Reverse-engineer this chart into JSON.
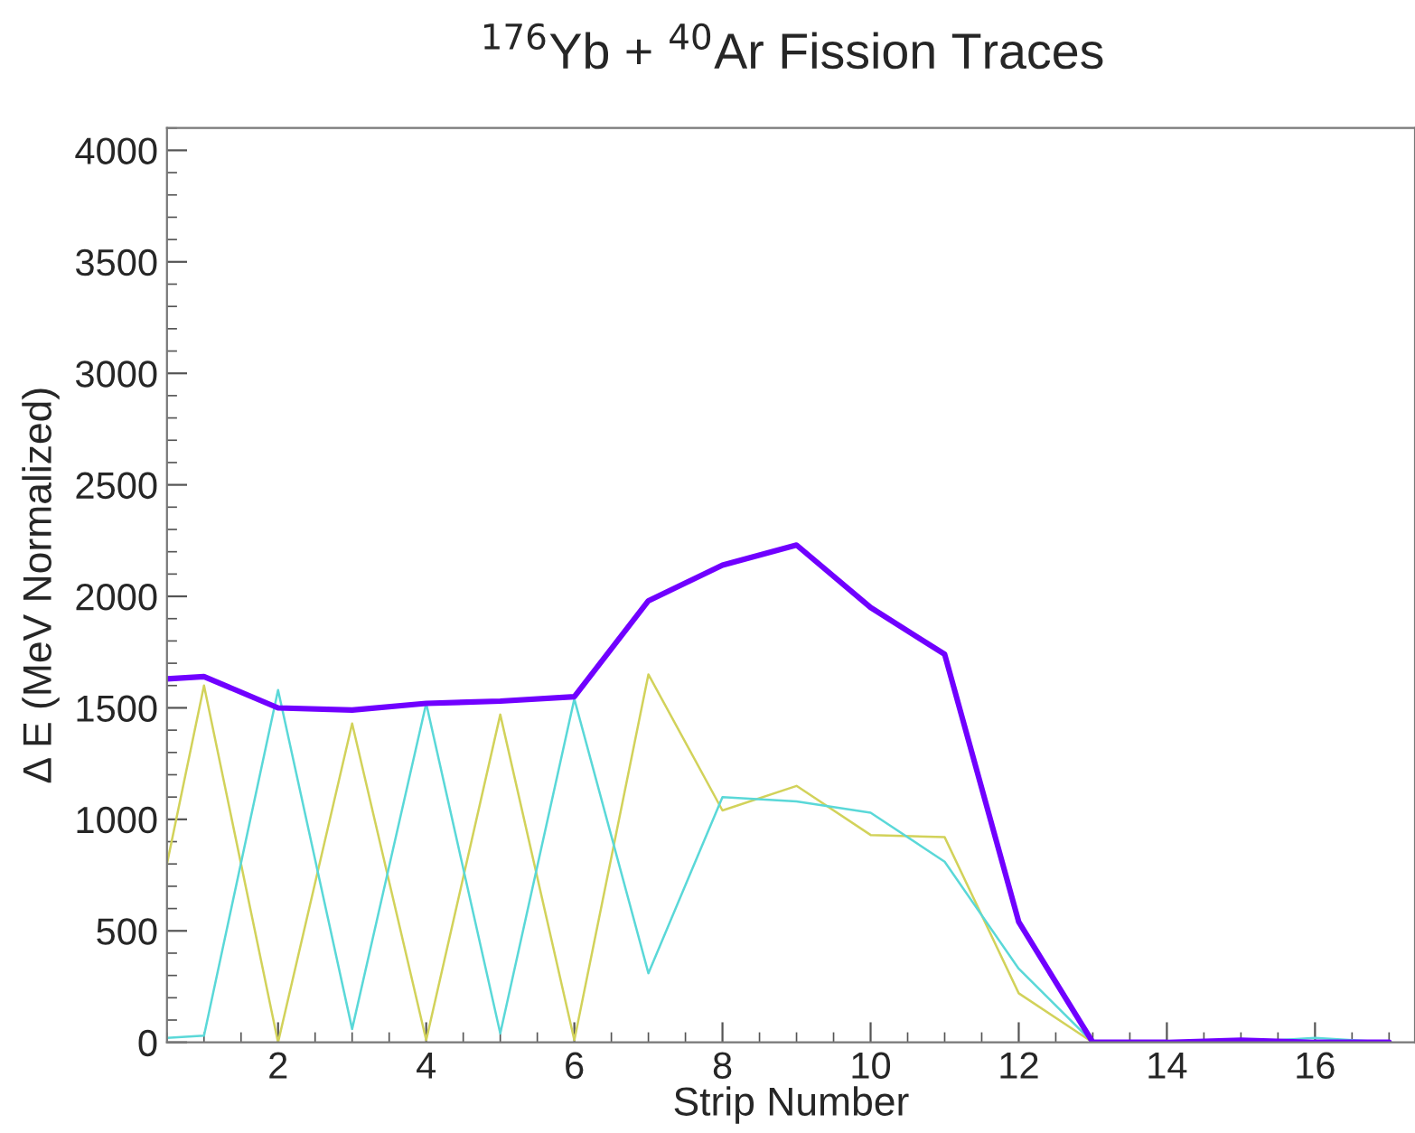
{
  "chart_data": {
    "type": "line",
    "title": "$^{176}$Yb + $^{40}$Ar Fission Traces",
    "xlabel": "Strip Number",
    "ylabel": "Δ E (MeV Normalized)",
    "xlim": [
      0.5,
      17.35
    ],
    "xticks": [
      2,
      4,
      6,
      8,
      10,
      12,
      14,
      16
    ],
    "ylim": [
      0,
      4100
    ],
    "yticks": [
      0,
      500,
      1000,
      1500,
      2000,
      2500,
      3000,
      3500,
      4000
    ],
    "grid": false,
    "legend": false,
    "marker": "none",
    "line_style": "solid",
    "x": [
      0.5,
      1,
      2,
      3,
      4,
      5,
      6,
      7,
      8,
      9,
      10,
      11,
      12,
      13,
      14,
      15,
      16,
      17
    ],
    "series": [
      {
        "color": "#d2d25a",
        "values": [
          800,
          1600,
          0,
          1430,
          10,
          1470,
          10,
          1650,
          1040,
          1150,
          930,
          920,
          220,
          0,
          0,
          null,
          null,
          null
        ]
      },
      {
        "color": "#5ad8d8",
        "values": [
          20,
          30,
          1580,
          60,
          1520,
          40,
          1540,
          310,
          1100,
          1080,
          1030,
          810,
          330,
          0,
          0,
          0,
          20,
          0
        ]
      },
      {
        "color": "#7000ff",
        "values": [
          1630,
          1640,
          1500,
          1490,
          1520,
          1530,
          1550,
          1980,
          2140,
          2230,
          1950,
          1740,
          540,
          0,
          0,
          10,
          0,
          0
        ]
      }
    ]
  }
}
